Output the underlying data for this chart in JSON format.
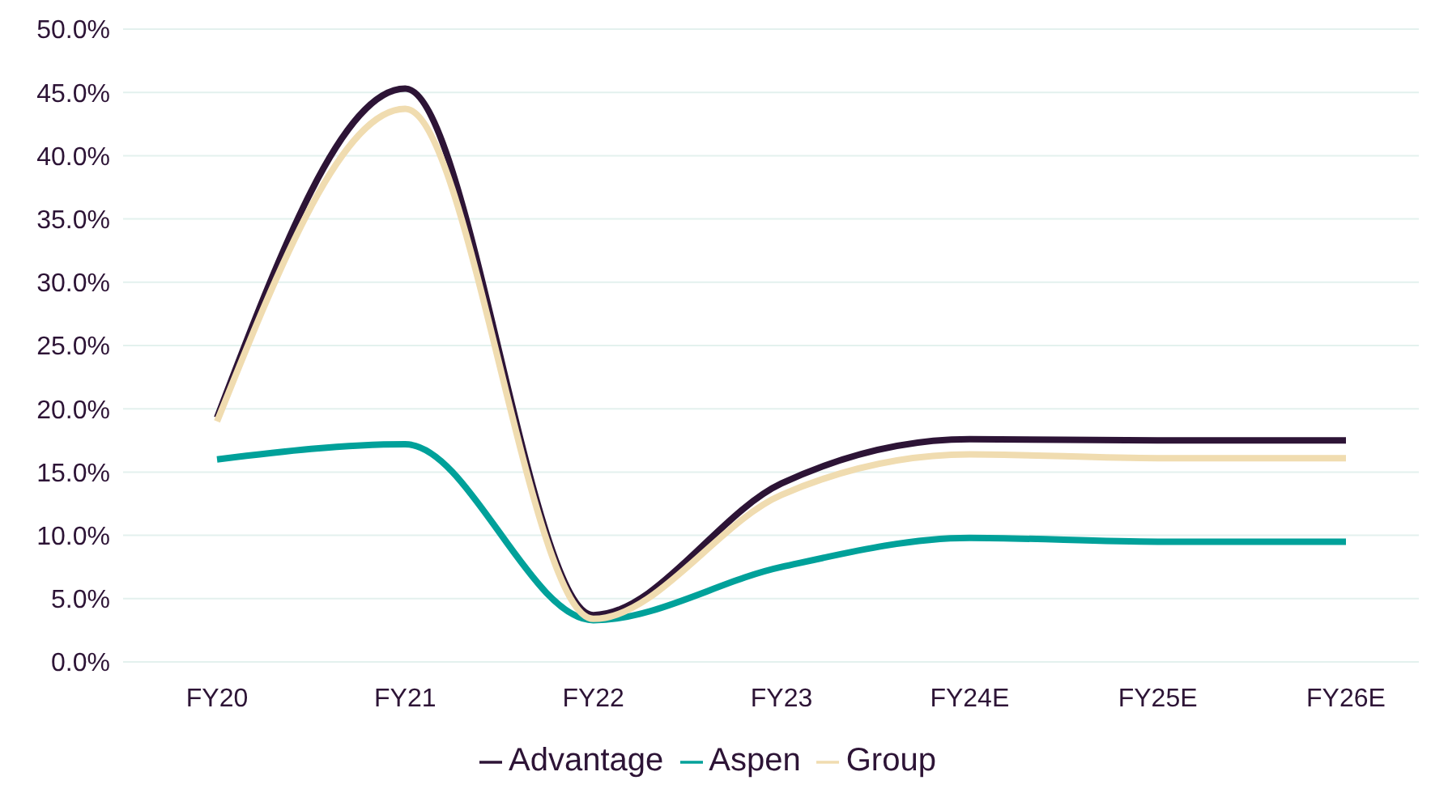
{
  "chart_data": {
    "type": "line",
    "categories": [
      "FY20",
      "FY21",
      "FY22",
      "FY23",
      "FY24E",
      "FY25E",
      "FY26E"
    ],
    "series": [
      {
        "name": "Advantage",
        "color": "#2d1436",
        "values": [
          19.3,
          45.3,
          3.7,
          14.1,
          17.6,
          17.5,
          17.5
        ]
      },
      {
        "name": "Aspen",
        "color": "#00a19a",
        "values": [
          16.0,
          17.2,
          3.3,
          7.5,
          9.8,
          9.5,
          9.5
        ]
      },
      {
        "name": "Group",
        "color": "#f0dcb0",
        "values": [
          19.0,
          43.7,
          3.4,
          13.2,
          16.4,
          16.1,
          16.1
        ]
      }
    ],
    "ylim": [
      0,
      50
    ],
    "yticks": [
      {
        "value": 0,
        "label": "0.0%"
      },
      {
        "value": 5,
        "label": "5.0%"
      },
      {
        "value": 10,
        "label": "10.0%"
      },
      {
        "value": 15,
        "label": "15.0%"
      },
      {
        "value": 20,
        "label": "20.0%"
      },
      {
        "value": 25,
        "label": "25.0%"
      },
      {
        "value": 30,
        "label": "30.0%"
      },
      {
        "value": 35,
        "label": "35.0%"
      },
      {
        "value": 40,
        "label": "40.0%"
      },
      {
        "value": 45,
        "label": "45.0%"
      },
      {
        "value": 50,
        "label": "50.0%"
      }
    ],
    "grid": "y",
    "legend": "bottom",
    "marker": "none",
    "line_style": "solid"
  }
}
